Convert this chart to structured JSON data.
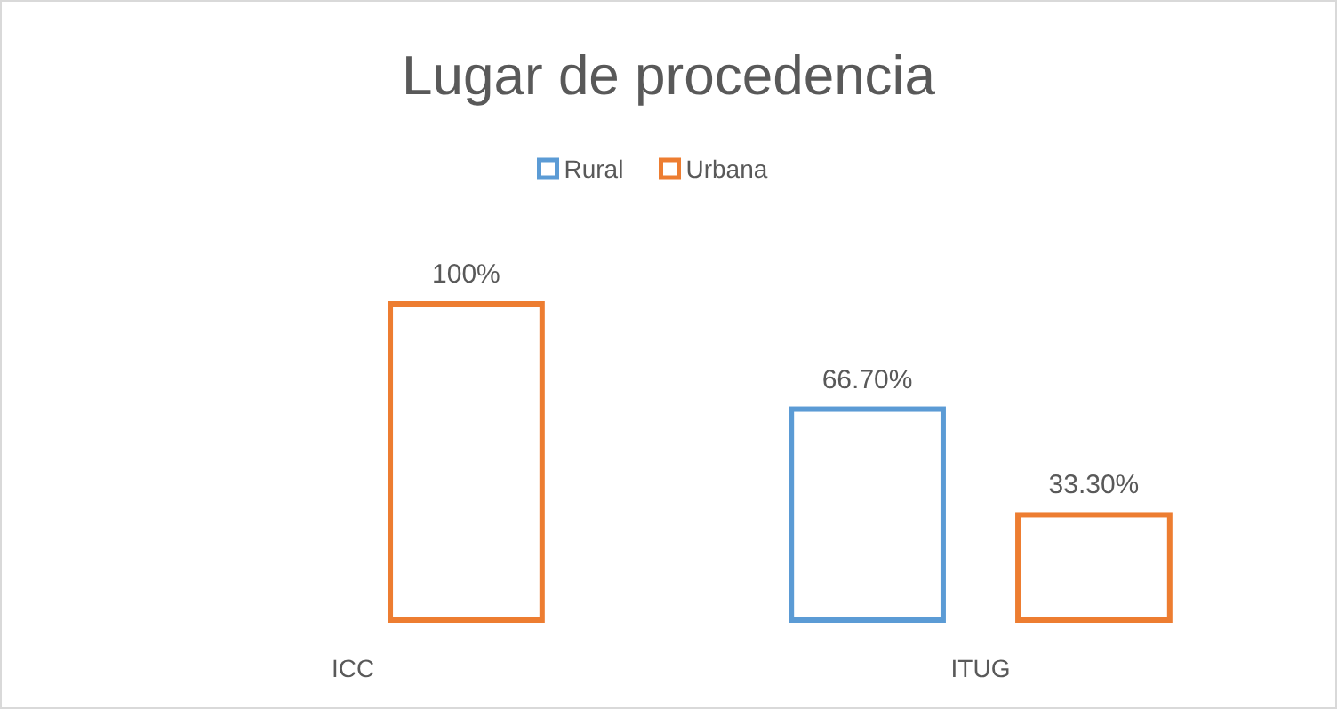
{
  "chart_data": {
    "type": "bar",
    "title": "Lugar de procedencia",
    "categories": [
      "ICC",
      "ITUG"
    ],
    "series": [
      {
        "name": "Rural",
        "color": "#5b9bd5",
        "values": [
          null,
          66.7
        ],
        "value_labels": [
          null,
          "66.70%"
        ]
      },
      {
        "name": "Urbana",
        "color": "#ed7d31",
        "values": [
          100,
          33.3
        ],
        "value_labels": [
          "100%",
          "33.30%"
        ]
      }
    ],
    "legend": "top"
  }
}
